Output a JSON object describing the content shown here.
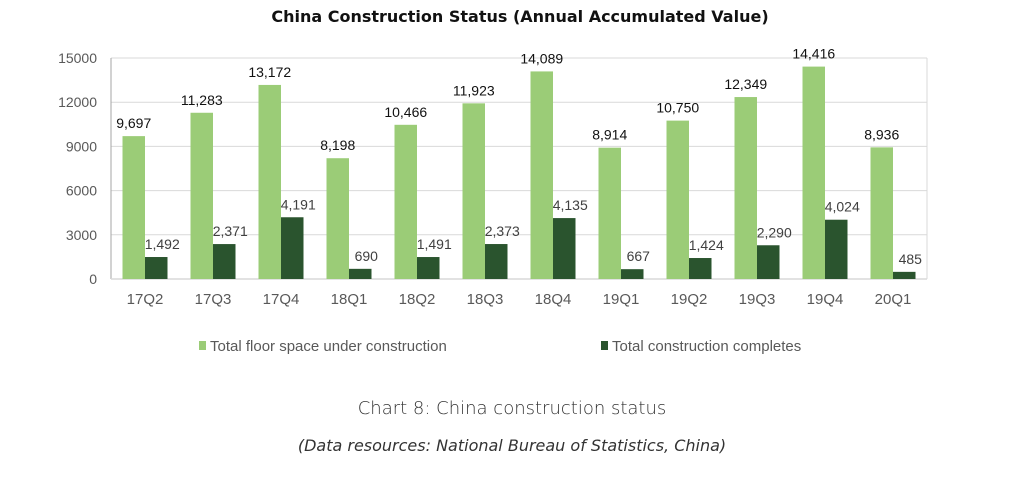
{
  "chart_data": {
    "type": "bar",
    "title": "China Construction Status (Annual Accumulated Value)",
    "xlabel": "",
    "ylabel": "",
    "ylim": [
      0,
      15000
    ],
    "yticks": [
      0,
      3000,
      6000,
      9000,
      12000,
      15000
    ],
    "grid": true,
    "legend_position": "bottom",
    "categories": [
      "17Q2",
      "17Q3",
      "17Q4",
      "18Q1",
      "18Q2",
      "18Q3",
      "18Q4",
      "19Q1",
      "19Q2",
      "19Q3",
      "19Q4",
      "20Q1"
    ],
    "series": [
      {
        "name": "Total floor space under construction",
        "color": "#9bcc77",
        "values": [
          9697,
          11283,
          13172,
          8198,
          10466,
          11923,
          14089,
          8914,
          10750,
          12349,
          14416,
          8936
        ],
        "labels": [
          "9,697",
          "11,283",
          "13,172",
          "8,198",
          "10,466",
          "11,923",
          "14,089",
          "8,914",
          "10,750",
          "12,349",
          "14,416",
          "8,936"
        ]
      },
      {
        "name": "Total construction completes",
        "color": "#2a542e",
        "values": [
          1492,
          2371,
          4191,
          690,
          1491,
          2373,
          4135,
          667,
          1424,
          2290,
          4024,
          485
        ],
        "labels": [
          "1,492",
          "2,371",
          "4,191",
          "690",
          "1,491",
          "2,373",
          "4,135",
          "667",
          "1,424",
          "2,290",
          "4,024",
          "485"
        ]
      }
    ]
  },
  "caption": {
    "main": "Chart 8: China construction status",
    "source": "(Data resources: National Bureau of Statistics, China)"
  }
}
